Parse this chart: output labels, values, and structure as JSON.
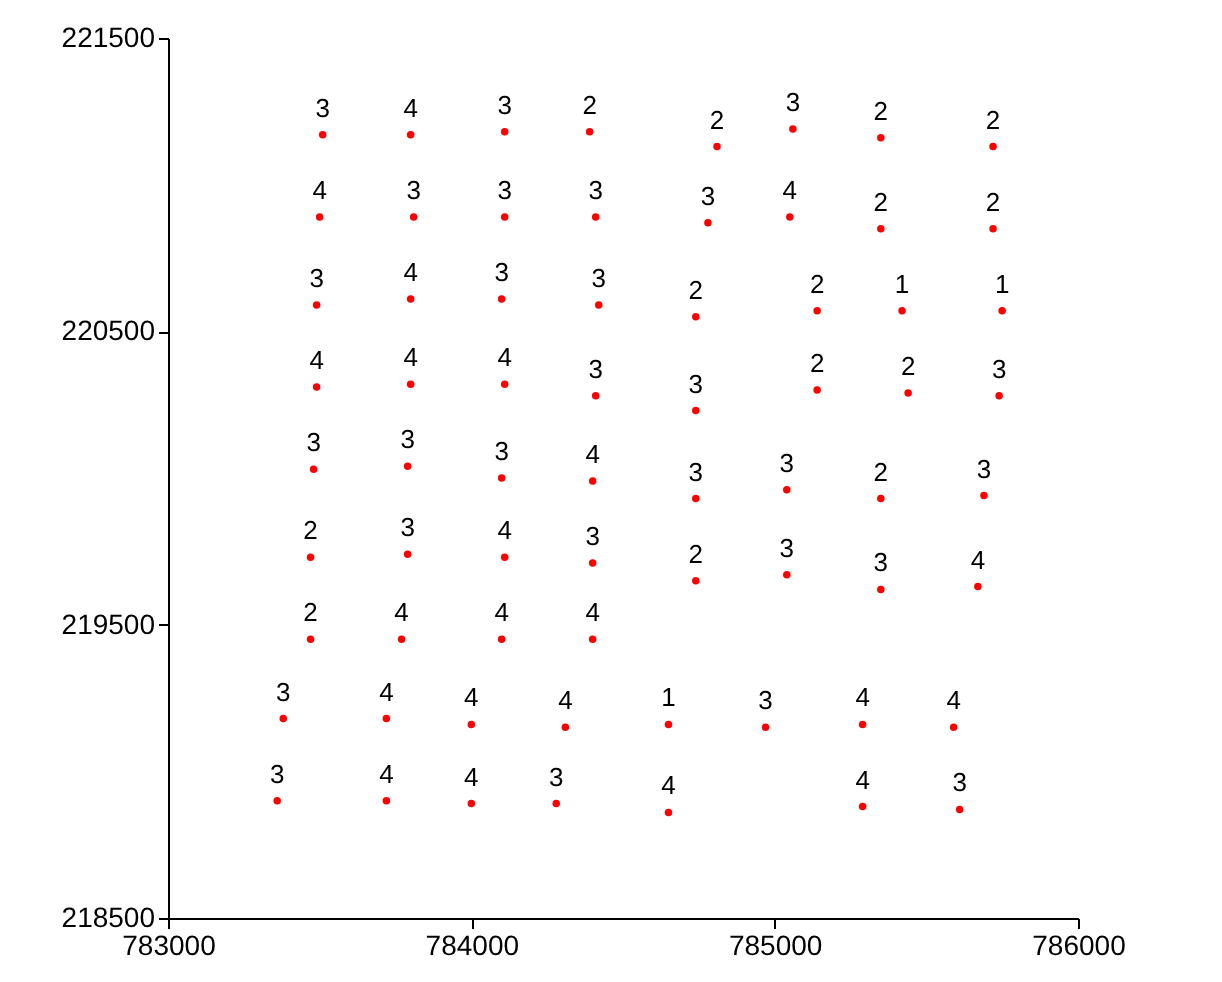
{
  "chart_data": {
    "type": "scatter",
    "xlim": [
      783000,
      786000
    ],
    "xticks": [
      783000,
      784000,
      785000,
      786000
    ],
    "ylim": [
      218500,
      221500
    ],
    "yticks": [
      218500,
      219500,
      220500,
      221500
    ],
    "grid": false,
    "legend": false,
    "marker": "circle",
    "series": [
      {
        "color": "#ff0000",
        "x": [
          783510,
          783800,
          784110,
          784390,
          784810,
          785060,
          785350,
          785720,
          783500,
          783810,
          784110,
          784410,
          784780,
          785050,
          785350,
          785720,
          783490,
          783800,
          784100,
          784420,
          784740,
          785140,
          785420,
          785750,
          783490,
          783800,
          784110,
          784410,
          784740,
          785140,
          785440,
          785740,
          783480,
          783790,
          784100,
          784400,
          784740,
          785040,
          785350,
          785690,
          783470,
          783790,
          784110,
          784400,
          784740,
          785040,
          785350,
          785670,
          783470,
          783770,
          784100,
          784400,
          783380,
          783720,
          784000,
          784310,
          784650,
          784970,
          785290,
          785590,
          783360,
          783720,
          784000,
          784280,
          784650,
          785290,
          785610
        ],
        "values": [
          221170,
          221170,
          221180,
          221180,
          221130,
          221190,
          221160,
          221130,
          220890,
          220890,
          220890,
          220890,
          220870,
          220890,
          220850,
          220850,
          220590,
          220610,
          220610,
          220590,
          220550,
          220570,
          220570,
          220570,
          220310,
          220320,
          220320,
          220280,
          220230,
          220300,
          220290,
          220280,
          220030,
          220040,
          220000,
          219990,
          219930,
          219960,
          219930,
          219940,
          219730,
          219740,
          219730,
          219710,
          219650,
          219670,
          219620,
          219630,
          219450,
          219450,
          219450,
          219450,
          219180,
          219180,
          219160,
          219150,
          219160,
          219150,
          219160,
          219150,
          218900,
          218900,
          218890,
          218890,
          218860,
          218880,
          218870
        ]
      }
    ],
    "annotations": [
      {
        "text": "3",
        "x": 783510,
        "y": 221170
      },
      {
        "text": "4",
        "x": 783800,
        "y": 221170
      },
      {
        "text": "3",
        "x": 784110,
        "y": 221180
      },
      {
        "text": "2",
        "x": 784390,
        "y": 221180
      },
      {
        "text": "2",
        "x": 784810,
        "y": 221130
      },
      {
        "text": "3",
        "x": 785060,
        "y": 221190
      },
      {
        "text": "2",
        "x": 785350,
        "y": 221160
      },
      {
        "text": "2",
        "x": 785720,
        "y": 221130
      },
      {
        "text": "4",
        "x": 783500,
        "y": 220890
      },
      {
        "text": "3",
        "x": 783810,
        "y": 220890
      },
      {
        "text": "3",
        "x": 784110,
        "y": 220890
      },
      {
        "text": "3",
        "x": 784410,
        "y": 220890
      },
      {
        "text": "3",
        "x": 784780,
        "y": 220870
      },
      {
        "text": "4",
        "x": 785050,
        "y": 220890
      },
      {
        "text": "2",
        "x": 785350,
        "y": 220850
      },
      {
        "text": "2",
        "x": 785720,
        "y": 220850
      },
      {
        "text": "3",
        "x": 783490,
        "y": 220590
      },
      {
        "text": "4",
        "x": 783800,
        "y": 220610
      },
      {
        "text": "3",
        "x": 784100,
        "y": 220610
      },
      {
        "text": "3",
        "x": 784420,
        "y": 220590
      },
      {
        "text": "2",
        "x": 784740,
        "y": 220550
      },
      {
        "text": "2",
        "x": 785140,
        "y": 220570
      },
      {
        "text": "1",
        "x": 785420,
        "y": 220570
      },
      {
        "text": "1",
        "x": 785750,
        "y": 220570
      },
      {
        "text": "4",
        "x": 783490,
        "y": 220310
      },
      {
        "text": "4",
        "x": 783800,
        "y": 220320
      },
      {
        "text": "4",
        "x": 784110,
        "y": 220320
      },
      {
        "text": "3",
        "x": 784410,
        "y": 220280
      },
      {
        "text": "3",
        "x": 784740,
        "y": 220230
      },
      {
        "text": "2",
        "x": 785140,
        "y": 220300
      },
      {
        "text": "2",
        "x": 785440,
        "y": 220290
      },
      {
        "text": "3",
        "x": 785740,
        "y": 220280
      },
      {
        "text": "3",
        "x": 783480,
        "y": 220030
      },
      {
        "text": "3",
        "x": 783790,
        "y": 220040
      },
      {
        "text": "3",
        "x": 784100,
        "y": 220000
      },
      {
        "text": "4",
        "x": 784400,
        "y": 219990
      },
      {
        "text": "3",
        "x": 784740,
        "y": 219930
      },
      {
        "text": "3",
        "x": 785040,
        "y": 219960
      },
      {
        "text": "2",
        "x": 785350,
        "y": 219930
      },
      {
        "text": "3",
        "x": 785690,
        "y": 219940
      },
      {
        "text": "2",
        "x": 783470,
        "y": 219730
      },
      {
        "text": "3",
        "x": 783790,
        "y": 219740
      },
      {
        "text": "4",
        "x": 784110,
        "y": 219730
      },
      {
        "text": "3",
        "x": 784400,
        "y": 219710
      },
      {
        "text": "2",
        "x": 784740,
        "y": 219650
      },
      {
        "text": "3",
        "x": 785040,
        "y": 219670
      },
      {
        "text": "3",
        "x": 785350,
        "y": 219620
      },
      {
        "text": "4",
        "x": 785670,
        "y": 219630
      },
      {
        "text": "2",
        "x": 783470,
        "y": 219450
      },
      {
        "text": "4",
        "x": 783770,
        "y": 219450
      },
      {
        "text": "4",
        "x": 784100,
        "y": 219450
      },
      {
        "text": "4",
        "x": 784400,
        "y": 219450
      },
      {
        "text": "3",
        "x": 783380,
        "y": 219180
      },
      {
        "text": "4",
        "x": 783720,
        "y": 219180
      },
      {
        "text": "4",
        "x": 784000,
        "y": 219160
      },
      {
        "text": "4",
        "x": 784310,
        "y": 219150
      },
      {
        "text": "1",
        "x": 784650,
        "y": 219160
      },
      {
        "text": "3",
        "x": 784970,
        "y": 219150
      },
      {
        "text": "4",
        "x": 785290,
        "y": 219160
      },
      {
        "text": "4",
        "x": 785590,
        "y": 219150
      },
      {
        "text": "3",
        "x": 783360,
        "y": 218900
      },
      {
        "text": "4",
        "x": 783720,
        "y": 218900
      },
      {
        "text": "4",
        "x": 784000,
        "y": 218890
      },
      {
        "text": "3",
        "x": 784280,
        "y": 218890
      },
      {
        "text": "4",
        "x": 784650,
        "y": 218860
      },
      {
        "text": "4",
        "x": 785290,
        "y": 218880
      },
      {
        "text": "3",
        "x": 785610,
        "y": 218870
      }
    ]
  }
}
